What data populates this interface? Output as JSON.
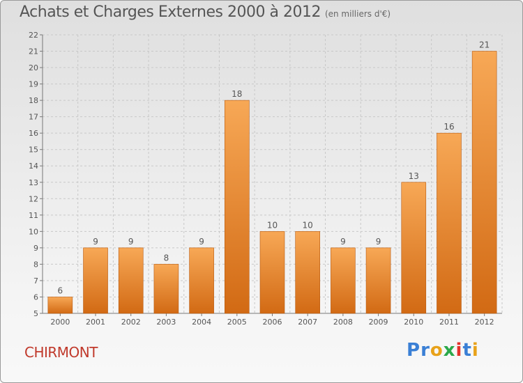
{
  "header": {
    "title": "Achats et Charges Externes 2000 à 2012",
    "unit": "(en milliers d'€)"
  },
  "footer": {
    "commune": "CHIRMONT",
    "logo_text": "Proxiti",
    "logo_colors": [
      "#3a7fd5",
      "#3a7fd5",
      "#e8a21a",
      "#2ba84a",
      "#e4332b",
      "#3a7fd5",
      "#e8a21a"
    ]
  },
  "colors": {
    "bar_top": "#f7a856",
    "bar_bottom": "#d26a14",
    "bar_border": "#b85a10",
    "grid": "#c8c8c8",
    "text": "#555555"
  },
  "chart_data": {
    "type": "bar",
    "categories": [
      "2000",
      "2001",
      "2002",
      "2003",
      "2004",
      "2005",
      "2006",
      "2007",
      "2008",
      "2009",
      "2010",
      "2011",
      "2012"
    ],
    "values": [
      6,
      9,
      9,
      8,
      9,
      18,
      10,
      10,
      9,
      9,
      13,
      16,
      21
    ],
    "title": "Achats et Charges Externes 2000 à 2012",
    "ylim": [
      5,
      22
    ],
    "yticks": [
      5,
      6,
      7,
      8,
      9,
      10,
      11,
      12,
      13,
      14,
      15,
      16,
      17,
      18,
      19,
      20,
      21,
      22
    ],
    "grid": true,
    "data_labels": true
  }
}
